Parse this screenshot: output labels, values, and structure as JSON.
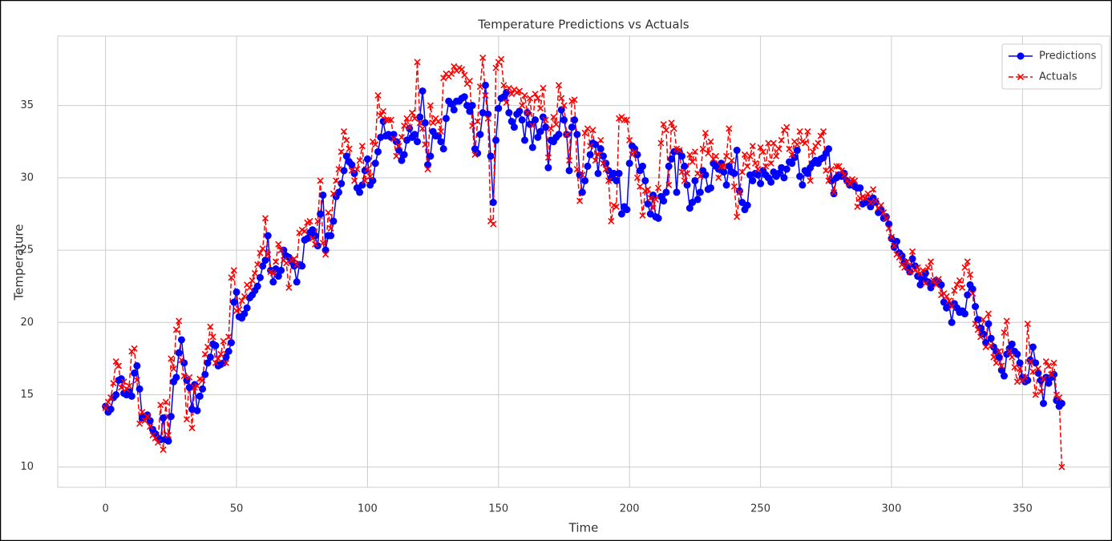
{
  "chart_data": {
    "type": "line",
    "title": "Temperature Predictions vs Actuals",
    "x_label": "Time",
    "y_label": "Temperature",
    "xlim": [
      -18.25,
      383.25
    ],
    "ylim": [
      8.6,
      39.8
    ],
    "xticks": [
      0,
      50,
      100,
      150,
      200,
      250,
      300,
      350
    ],
    "yticks": [
      10,
      15,
      20,
      25,
      30,
      35
    ],
    "grid": true,
    "legend": "upper right",
    "x_start": 0,
    "series": [
      {
        "name": "Predictions",
        "color": "#0000ff",
        "marker": "circle",
        "linestyle": "solid",
        "values": [
          14.2,
          13.8,
          14.0,
          14.8,
          15.0,
          16.0,
          16.1,
          15.1,
          15.0,
          15.2,
          14.9,
          16.5,
          17.0,
          15.4,
          13.4,
          13.5,
          13.6,
          13.2,
          12.6,
          12.3,
          12.0,
          11.9,
          13.4,
          11.9,
          11.8,
          13.5,
          15.9,
          16.2,
          17.9,
          18.8,
          17.2,
          16.0,
          15.5,
          14.0,
          15.7,
          13.9,
          14.9,
          15.4,
          16.4,
          17.2,
          17.6,
          18.5,
          18.4,
          17.0,
          17.1,
          17.2,
          17.6,
          18.0,
          18.6,
          21.4,
          22.1,
          20.4,
          20.3,
          20.6,
          21.0,
          21.7,
          21.9,
          22.2,
          22.5,
          23.1,
          23.9,
          24.3,
          26.0,
          23.6,
          22.8,
          23.7,
          23.2,
          23.6,
          25.0,
          24.6,
          24.5,
          24.2,
          23.9,
          22.8,
          24.0,
          23.9,
          25.7,
          25.8,
          26.2,
          26.4,
          26.0,
          25.3,
          27.5,
          28.8,
          25.0,
          26.0,
          26.0,
          27.0,
          28.7,
          29.0,
          29.6,
          30.5,
          31.5,
          31.1,
          30.9,
          30.3,
          29.3,
          29.0,
          29.5,
          30.5,
          31.3,
          29.5,
          29.8,
          31.0,
          31.8,
          32.8,
          33.9,
          32.9,
          33.0,
          32.8,
          33.0,
          32.5,
          31.9,
          31.2,
          31.6,
          32.6,
          33.4,
          32.8,
          33.0,
          32.5,
          34.2,
          36.0,
          33.8,
          30.9,
          31.5,
          33.2,
          32.9,
          32.9,
          32.5,
          32.0,
          34.1,
          35.3,
          35.1,
          34.7,
          35.3,
          35.3,
          35.5,
          35.6,
          35.0,
          34.6,
          35.0,
          32.0,
          31.7,
          33.0,
          34.5,
          36.4,
          34.4,
          31.5,
          28.3,
          32.6,
          34.8,
          35.5,
          35.6,
          35.9,
          34.5,
          33.9,
          33.5,
          34.4,
          34.6,
          34.0,
          32.6,
          34.5,
          33.7,
          32.1,
          34.0,
          32.8,
          33.2,
          34.2,
          33.5,
          30.7,
          32.6,
          32.5,
          32.8,
          33.0,
          34.7,
          34.0,
          33.0,
          30.5,
          33.5,
          34.0,
          33.0,
          30.2,
          29.0,
          29.8,
          30.8,
          31.6,
          32.4,
          32.3,
          30.3,
          32.0,
          31.5,
          31.0,
          30.5,
          30.0,
          30.3,
          29.8,
          30.3,
          27.5,
          28.0,
          27.8,
          31.0,
          32.2,
          32.0,
          31.6,
          30.5,
          30.8,
          29.8,
          28.2,
          27.5,
          28.8,
          27.3,
          27.2,
          28.7,
          28.4,
          29.0,
          30.8,
          31.3,
          31.8,
          29.0,
          31.8,
          31.5,
          30.8,
          29.5,
          27.9,
          28.3,
          29.8,
          28.5,
          29.0,
          30.5,
          30.2,
          29.2,
          29.3,
          31.0,
          30.8,
          30.6,
          31.0,
          30.4,
          29.5,
          30.8,
          30.4,
          30.3,
          31.9,
          29.1,
          28.3,
          27.8,
          28.1,
          30.2,
          29.8,
          30.3,
          30.2,
          29.6,
          30.5,
          30.2,
          30.0,
          29.7,
          30.4,
          30.1,
          30.3,
          30.7,
          30.0,
          30.6,
          31.1,
          31.0,
          31.4,
          31.9,
          30.1,
          29.5,
          30.5,
          30.3,
          30.7,
          31.0,
          31.2,
          31.0,
          31.3,
          31.4,
          31.7,
          32.0,
          29.8,
          28.9,
          30.0,
          30.2,
          30.1,
          30.3,
          29.8,
          29.5,
          29.6,
          29.4,
          29.3,
          29.3,
          28.2,
          28.3,
          28.4,
          28.0,
          28.6,
          28.3,
          27.6,
          27.8,
          27.2,
          27.3,
          26.8,
          25.8,
          25.2,
          25.6,
          24.8,
          24.6,
          24.2,
          23.8,
          23.5,
          24.4,
          23.9,
          23.2,
          22.6,
          23.0,
          23.4,
          22.8,
          22.4,
          22.7,
          22.9,
          22.8,
          22.6,
          21.4,
          21.0,
          21.2,
          20.0,
          21.3,
          21.0,
          20.7,
          20.8,
          20.6,
          21.9,
          22.6,
          22.3,
          21.1,
          20.2,
          19.6,
          19.2,
          18.6,
          19.9,
          18.9,
          18.3,
          18.0,
          17.6,
          16.7,
          16.3,
          17.8,
          18.2,
          18.5,
          18.0,
          17.8,
          17.2,
          16.2,
          15.9,
          16.0,
          17.4,
          18.3,
          17.2,
          16.5,
          16.0,
          14.4,
          16.2,
          15.8,
          16.2,
          16.4,
          14.6,
          14.2,
          14.4
        ]
      },
      {
        "name": "Actuals",
        "color": "#ff0000",
        "marker": "x",
        "linestyle": "dashed",
        "values": [
          14.1,
          14.5,
          14.8,
          15.8,
          17.3,
          17.0,
          15.5,
          15.9,
          15.4,
          15.6,
          18.0,
          18.2,
          16.0,
          13.0,
          13.8,
          13.2,
          13.5,
          12.8,
          12.2,
          12.0,
          11.7,
          14.3,
          11.2,
          14.5,
          12.2,
          17.5,
          16.8,
          19.5,
          20.1,
          17.4,
          16.3,
          13.3,
          16.2,
          12.7,
          15.5,
          15.6,
          16.1,
          16.0,
          17.8,
          18.3,
          19.7,
          19.0,
          17.2,
          17.5,
          17.8,
          18.7,
          17.2,
          19.0,
          23.1,
          23.6,
          20.8,
          20.9,
          21.5,
          21.8,
          22.6,
          22.4,
          22.9,
          23.4,
          24.0,
          24.8,
          25.1,
          27.2,
          24.7,
          23.5,
          23.4,
          24.2,
          25.4,
          25.0,
          24.3,
          24.1,
          22.4,
          24.3,
          24.4,
          24.0,
          26.2,
          26.4,
          26.3,
          26.9,
          27.0,
          25.8,
          25.4,
          27.0,
          29.8,
          25.5,
          24.7,
          27.6,
          26.5,
          28.9,
          29.8,
          30.6,
          31.8,
          33.2,
          32.6,
          32.0,
          30.5,
          29.8,
          30.6,
          31.2,
          32.2,
          29.8,
          30.6,
          30.1,
          32.5,
          32.3,
          35.7,
          34.3,
          34.6,
          34.0,
          34.0,
          34.0,
          32.7,
          31.5,
          32.2,
          32.8,
          33.6,
          34.1,
          33.5,
          34.5,
          34.1,
          38.0,
          33.8,
          33.4,
          32.3,
          30.6,
          35.0,
          33.8,
          34.1,
          33.9,
          33.2,
          36.9,
          37.2,
          37.0,
          37.2,
          37.7,
          37.4,
          37.6,
          37.5,
          37.1,
          36.5,
          36.7,
          33.6,
          31.6,
          33.9,
          36.3,
          38.3,
          35.7,
          34.1,
          27.0,
          26.8,
          37.6,
          38.0,
          38.2,
          36.4,
          35.2,
          36.2,
          35.8,
          36.1,
          35.9,
          36.0,
          35.0,
          35.7,
          34.5,
          35.5,
          33.6,
          35.8,
          35.5,
          34.8,
          36.2,
          34.0,
          31.4,
          33.4,
          34.2,
          33.7,
          36.4,
          35.5,
          35.0,
          33.0,
          31.2,
          35.3,
          35.4,
          30.6,
          28.4,
          30.2,
          33.1,
          33.4,
          32.2,
          33.3,
          31.2,
          31.6,
          32.6,
          31.0,
          30.6,
          29.8,
          27.0,
          28.1,
          28.0,
          34.1,
          34.2,
          34.0,
          34.0,
          32.6,
          31.6,
          31.8,
          30.0,
          29.4,
          27.4,
          29.1,
          29.2,
          28.6,
          27.9,
          28.5,
          29.3,
          32.4,
          33.7,
          33.3,
          29.5,
          33.8,
          33.4,
          32.0,
          31.9,
          30.4,
          29.8,
          30.3,
          31.6,
          31.1,
          31.8,
          30.3,
          30.1,
          32.0,
          33.1,
          31.7,
          32.5,
          31.3,
          31.5,
          30.0,
          30.8,
          30.8,
          31.5,
          33.4,
          31.2,
          29.4,
          27.3,
          29.0,
          30.4,
          31.6,
          30.8,
          31.5,
          32.2,
          31.0,
          30.6,
          32.1,
          31.8,
          30.8,
          32.4,
          31.0,
          32.4,
          31.5,
          32.0,
          32.6,
          33.3,
          33.5,
          32.0,
          31.6,
          32.5,
          32.3,
          33.2,
          32.5,
          32.4,
          33.2,
          29.8,
          31.8,
          32.2,
          32.4,
          32.9,
          33.2,
          30.5,
          29.8,
          30.6,
          29.0,
          30.8,
          30.8,
          30.5,
          30.2,
          29.8,
          29.6,
          29.9,
          29.8,
          28.0,
          28.6,
          28.7,
          28.6,
          28.9,
          28.3,
          29.2,
          28.4,
          27.9,
          28.1,
          27.6,
          27.2,
          26.5,
          25.9,
          25.3,
          24.7,
          24.5,
          24.0,
          23.8,
          24.2,
          23.5,
          24.9,
          23.6,
          23.8,
          23.4,
          23.6,
          22.7,
          23.8,
          24.2,
          22.9,
          22.6,
          23.0,
          21.9,
          22.0,
          21.8,
          21.5,
          21.1,
          22.2,
          22.6,
          22.9,
          22.4,
          23.8,
          24.2,
          23.3,
          22.0,
          19.9,
          19.5,
          19.0,
          20.2,
          18.3,
          20.6,
          18.4,
          17.6,
          17.2,
          18.0,
          17.0,
          19.3,
          20.1,
          18.0,
          17.6,
          16.9,
          15.9,
          16.8,
          16.0,
          16.2,
          19.9,
          17.3,
          16.6,
          15.0,
          16.8,
          15.2,
          16.1,
          17.3,
          17.0,
          16.4,
          17.2,
          15.0,
          14.8,
          10.0
        ]
      }
    ]
  }
}
